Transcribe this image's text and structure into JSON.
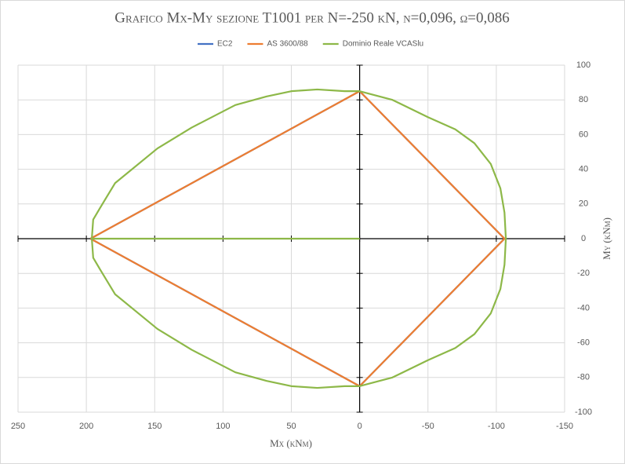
{
  "chart_data": {
    "type": "line",
    "title": "Grafico Mx-My sezione T1001 per N=-250 kN, ν=0,096, ω=0,086",
    "x_label": "Mx (kNm)",
    "y_label": "My (kNm)",
    "xlim": [
      250,
      -150
    ],
    "xticks": [
      250,
      200,
      150,
      100,
      50,
      0,
      -50,
      -100,
      -150
    ],
    "ylim": [
      -100,
      100
    ],
    "yticks": [
      -100,
      -80,
      -60,
      -40,
      -20,
      0,
      20,
      40,
      60,
      80,
      100
    ],
    "grid": true,
    "legend": "top",
    "series": [
      {
        "name": "EC2",
        "color": "#4472c4",
        "x": [
          197,
          0,
          -106,
          0,
          197
        ],
        "values": [
          0,
          85,
          0,
          -85,
          0
        ]
      },
      {
        "name": "AS 3600/88",
        "color": "#ed7d31",
        "x": [
          197,
          0,
          -106,
          0,
          197
        ],
        "values": [
          0,
          85,
          0,
          -85,
          0
        ]
      },
      {
        "name": "Dominio Reale VCASlu",
        "color": "#8db848",
        "x": [
          0,
          196,
          195,
          189,
          179,
          148,
          123,
          91,
          68,
          50,
          31,
          11,
          0,
          -24,
          -50,
          -70,
          -84,
          -96,
          -103,
          -106,
          -107,
          -106,
          -103,
          -96,
          -84,
          -70,
          -50,
          -24,
          0,
          11,
          31,
          50,
          68,
          91,
          123,
          148,
          179,
          189,
          195,
          196
        ],
        "values": [
          0,
          0,
          11,
          19,
          32,
          52,
          64,
          77,
          82,
          85,
          86,
          85,
          85,
          80,
          70,
          63,
          55,
          43,
          29,
          15,
          0,
          -15,
          -29,
          -43,
          -55,
          -63,
          -70,
          -80,
          -85,
          -85,
          -86,
          -85,
          -82,
          -77,
          -64,
          -52,
          -32,
          -19,
          -11,
          0
        ]
      }
    ]
  }
}
